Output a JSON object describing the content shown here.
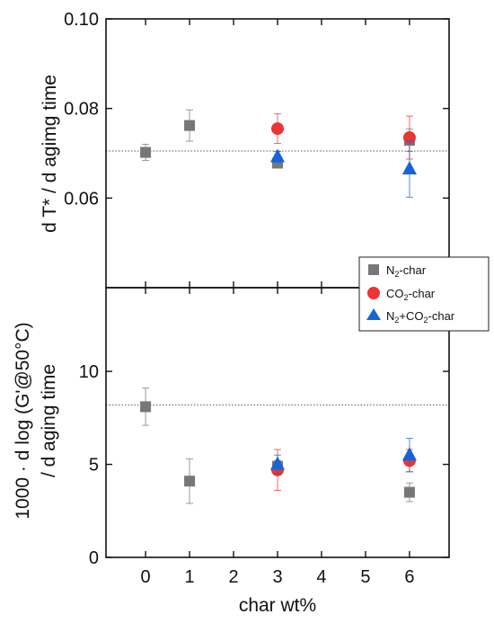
{
  "chart_data": [
    {
      "type": "scatter",
      "panel": "top",
      "ylabel": "d T* / d agimg time",
      "ylim": [
        0.04,
        0.1
      ],
      "yticks": [
        "0.06",
        "0.08",
        "0.10"
      ],
      "reference_line": 0.0705,
      "series": [
        {
          "name": "N₂-char",
          "color": "#777777",
          "marker": "square",
          "points": [
            {
              "x": 0,
              "y": 0.0702,
              "err": 0.0018
            },
            {
              "x": 1,
              "y": 0.0762,
              "err": 0.0035
            },
            {
              "x": 3,
              "y": 0.0678,
              "err": 0.0008
            },
            {
              "x": 6,
              "y": 0.0729,
              "err": 0.0025
            }
          ]
        },
        {
          "name": "CO₂-char",
          "color": "#ee3333",
          "marker": "circle",
          "points": [
            {
              "x": 3,
              "y": 0.0755,
              "err": 0.0033
            },
            {
              "x": 6,
              "y": 0.0735,
              "err": 0.0048
            }
          ]
        },
        {
          "name": "N₂+CO₂-char",
          "color": "#1565d8",
          "marker": "triangle",
          "points": [
            {
              "x": 3,
              "y": 0.0692,
              "err": 0.0012
            },
            {
              "x": 6,
              "y": 0.0665,
              "err": 0.0063
            }
          ]
        }
      ]
    },
    {
      "type": "scatter",
      "panel": "bottom",
      "ylabel_line1": "1000 · d log (G'@50°C)",
      "ylabel_line2": "/ d aging time",
      "ylim": [
        0,
        14.5
      ],
      "yticks": [
        "0",
        "5",
        "10"
      ],
      "reference_line": 8.2,
      "series": [
        {
          "name": "N₂-char",
          "color": "#777777",
          "marker": "square",
          "points": [
            {
              "x": 0,
              "y": 8.1,
              "err": 1.0
            },
            {
              "x": 1,
              "y": 4.1,
              "err": 1.2
            },
            {
              "x": 3,
              "y": 4.9,
              "err": 0.3
            },
            {
              "x": 6,
              "y": 3.5,
              "err": 0.5
            }
          ]
        },
        {
          "name": "CO₂-char",
          "color": "#ee3333",
          "marker": "circle",
          "points": [
            {
              "x": 3,
              "y": 4.7,
              "err": 1.1
            },
            {
              "x": 6,
              "y": 5.2,
              "err": 0.6
            }
          ]
        },
        {
          "name": "N₂+CO₂-char",
          "color": "#1565d8",
          "marker": "triangle",
          "points": [
            {
              "x": 3,
              "y": 5.0,
              "err": 0.5
            },
            {
              "x": 6,
              "y": 5.5,
              "err": 0.9
            }
          ]
        }
      ]
    }
  ],
  "x_axis": {
    "label": "char wt%",
    "ticks": [
      0,
      1,
      2,
      3,
      4,
      5,
      6
    ],
    "tick_labels": [
      "0",
      "1",
      "2",
      "3",
      "4",
      "5",
      "6"
    ],
    "xlim": [
      -0.9,
      6.9
    ]
  },
  "legend": {
    "placement": "right-middle",
    "entries": [
      {
        "name_main": "N",
        "name_sub": "2",
        "name_rest": "-char",
        "marker": "square",
        "color": "#777777"
      },
      {
        "name_main": "CO",
        "name_sub": "2",
        "name_rest": "-char",
        "marker": "circle",
        "color": "#ee3333"
      },
      {
        "name_main": "N",
        "name_sub": "2",
        "name_mid": "+CO",
        "name_sub2": "2",
        "name_rest": "-char",
        "marker": "triangle",
        "color": "#1565d8"
      }
    ]
  }
}
